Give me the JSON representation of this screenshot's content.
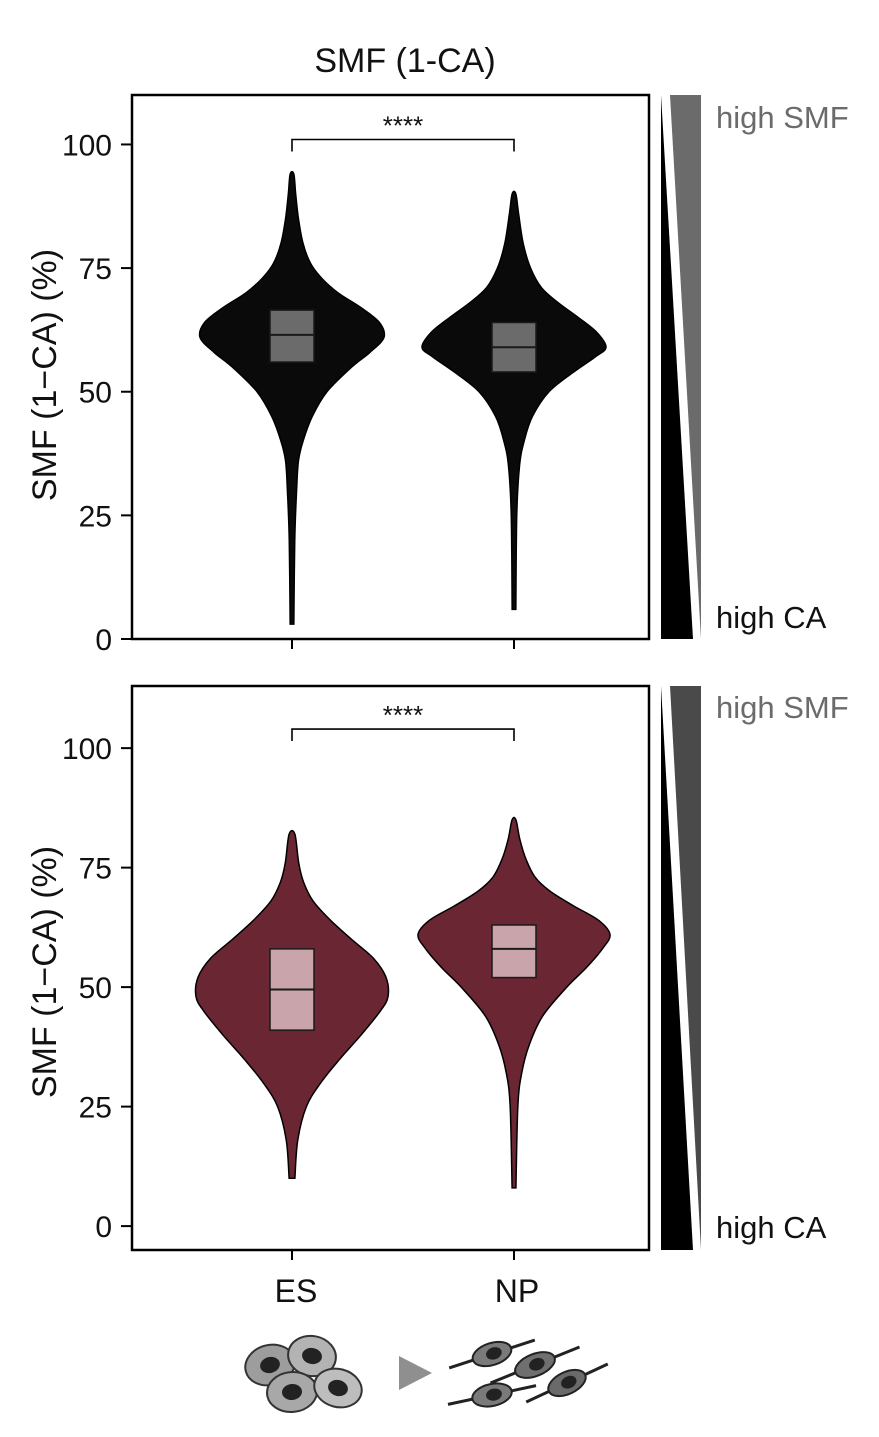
{
  "figure_title": "SMF (1-CA)",
  "chart_data": [
    {
      "type": "violin",
      "title": "SMF (1-CA)",
      "ylabel": "SMF (1−CA) (%)",
      "ylim": [
        0,
        110
      ],
      "yticks": [
        0,
        25,
        50,
        75,
        100
      ],
      "categories": [
        "ES",
        "NP"
      ],
      "fill_color": "#0a0a0a",
      "box_color": "#6b6b6b",
      "significance": {
        "label": "****",
        "between": [
          "ES",
          "NP"
        ],
        "y": 101
      },
      "violins": [
        {
          "category": "ES",
          "min": 3,
          "max": 94,
          "q1": 56,
          "median": 61.5,
          "q3": 66.5,
          "profile": [
            [
              3,
              0.02
            ],
            [
              20,
              0.03
            ],
            [
              30,
              0.05
            ],
            [
              36,
              0.07
            ],
            [
              40,
              0.12
            ],
            [
              45,
              0.22
            ],
            [
              50,
              0.38
            ],
            [
              55,
              0.65
            ],
            [
              58,
              0.85
            ],
            [
              61,
              1.0
            ],
            [
              64,
              0.95
            ],
            [
              67,
              0.75
            ],
            [
              70,
              0.5
            ],
            [
              73,
              0.32
            ],
            [
              76,
              0.2
            ],
            [
              80,
              0.12
            ],
            [
              85,
              0.07
            ],
            [
              90,
              0.04
            ],
            [
              94,
              0.02
            ]
          ]
        },
        {
          "category": "NP",
          "min": 6,
          "max": 90,
          "q1": 54,
          "median": 59,
          "q3": 64,
          "profile": [
            [
              6,
              0.02
            ],
            [
              25,
              0.03
            ],
            [
              35,
              0.06
            ],
            [
              40,
              0.11
            ],
            [
              45,
              0.2
            ],
            [
              50,
              0.38
            ],
            [
              54,
              0.65
            ],
            [
              57,
              0.88
            ],
            [
              59,
              1.0
            ],
            [
              62,
              0.9
            ],
            [
              65,
              0.7
            ],
            [
              68,
              0.48
            ],
            [
              71,
              0.3
            ],
            [
              75,
              0.18
            ],
            [
              80,
              0.1
            ],
            [
              86,
              0.05
            ],
            [
              90,
              0.02
            ]
          ]
        }
      ],
      "scale_bar": {
        "top_label": "high SMF",
        "bottom_label": "high CA"
      }
    },
    {
      "type": "violin",
      "ylabel": "SMF (1−CA) (%)",
      "ylim": [
        -5,
        113
      ],
      "yticks": [
        0,
        25,
        50,
        75,
        100
      ],
      "categories": [
        "ES",
        "NP"
      ],
      "fill_color": "#6b2634",
      "box_color": "#c9a4ab",
      "significance": {
        "label": "****",
        "between": [
          "ES",
          "NP"
        ],
        "y": 104
      },
      "violins": [
        {
          "category": "ES",
          "min": 10,
          "max": 82,
          "q1": 41,
          "median": 49.5,
          "q3": 58,
          "profile": [
            [
              10,
              0.03
            ],
            [
              18,
              0.06
            ],
            [
              25,
              0.15
            ],
            [
              30,
              0.3
            ],
            [
              35,
              0.5
            ],
            [
              40,
              0.72
            ],
            [
              45,
              0.92
            ],
            [
              48,
              1.0
            ],
            [
              52,
              0.98
            ],
            [
              56,
              0.85
            ],
            [
              60,
              0.62
            ],
            [
              64,
              0.4
            ],
            [
              68,
              0.22
            ],
            [
              72,
              0.12
            ],
            [
              76,
              0.07
            ],
            [
              82,
              0.03
            ]
          ]
        },
        {
          "category": "NP",
          "min": 8,
          "max": 85,
          "q1": 52,
          "median": 58,
          "q3": 63,
          "profile": [
            [
              8,
              0.02
            ],
            [
              25,
              0.04
            ],
            [
              32,
              0.08
            ],
            [
              38,
              0.16
            ],
            [
              44,
              0.3
            ],
            [
              50,
              0.55
            ],
            [
              54,
              0.75
            ],
            [
              58,
              0.92
            ],
            [
              61,
              1.0
            ],
            [
              64,
              0.88
            ],
            [
              67,
              0.62
            ],
            [
              70,
              0.38
            ],
            [
              73,
              0.22
            ],
            [
              77,
              0.12
            ],
            [
              81,
              0.06
            ],
            [
              85,
              0.02
            ]
          ]
        }
      ],
      "scale_bar": {
        "top_label": "high SMF",
        "bottom_label": "high CA"
      }
    }
  ],
  "colors": {
    "scale_dark": "#000000",
    "scale_gray": "#6b6b6b",
    "label_gray": "#6b6b6b"
  },
  "cell_illustration": {
    "left_icon": "es-cells-icon",
    "arrow_icon": "triangle-arrow-icon",
    "right_icon": "np-cells-icon"
  }
}
